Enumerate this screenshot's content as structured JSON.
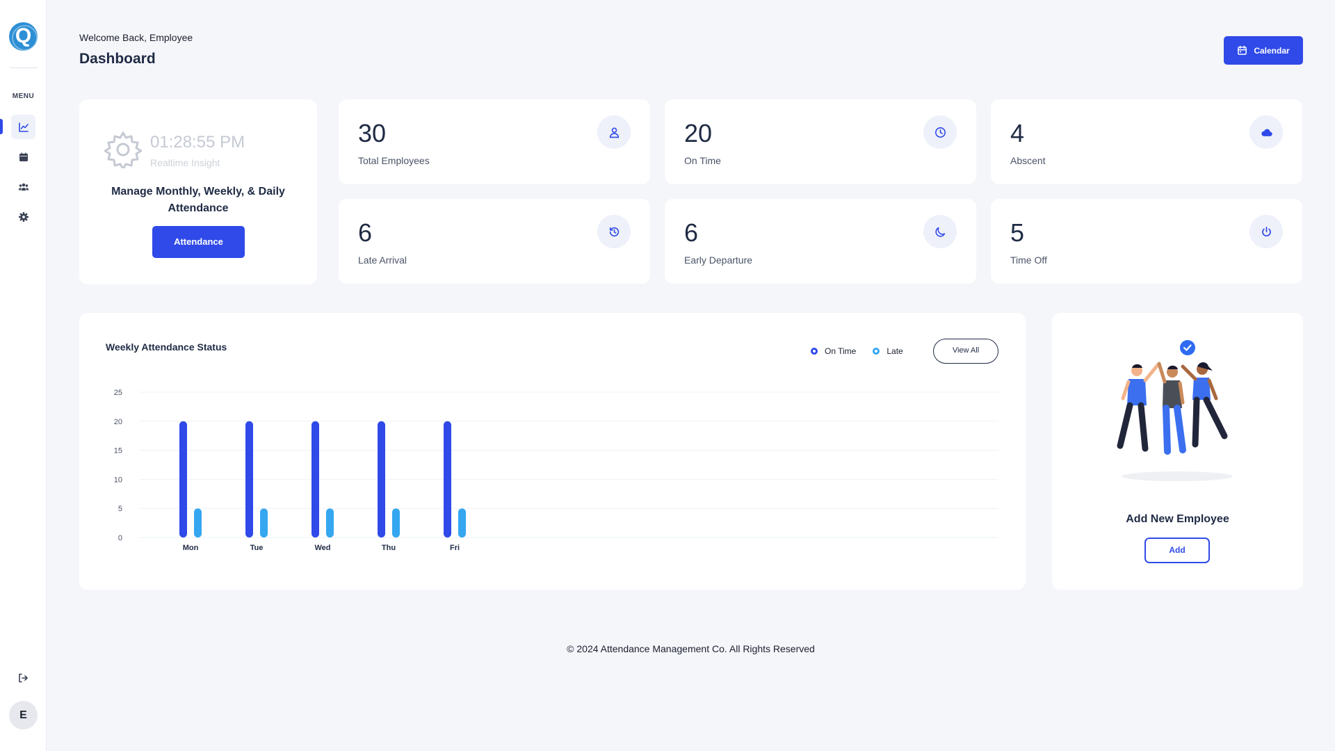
{
  "sidebar": {
    "logo_letter": "Q",
    "menu_label": "MENU",
    "nav": [
      {
        "icon": "chart-line-icon",
        "active": true
      },
      {
        "icon": "calendar-icon",
        "active": false
      },
      {
        "icon": "users-icon",
        "active": false
      },
      {
        "icon": "gear-icon",
        "active": false
      }
    ],
    "logout_icon": "logout-icon",
    "avatar_letter": "E"
  },
  "header": {
    "welcome": "Welcome Back, Employee",
    "title": "Dashboard",
    "calendar_label": "Calendar"
  },
  "insight": {
    "time": "01:28:55 PM",
    "subtitle": "Realtime Insight",
    "headline": "Manage Monthly, Weekly, & Daily Attendance",
    "button_label": "Attendance"
  },
  "stats": [
    {
      "value": "30",
      "label": "Total Employees",
      "icon": "user-icon"
    },
    {
      "value": "20",
      "label": "On Time",
      "icon": "clock-icon"
    },
    {
      "value": "4",
      "label": "Abscent",
      "icon": "cloud-icon"
    },
    {
      "value": "6",
      "label": "Late Arrival",
      "icon": "history-icon"
    },
    {
      "value": "6",
      "label": "Early Departure",
      "icon": "moon-icon"
    },
    {
      "value": "5",
      "label": "Time Off",
      "icon": "power-icon"
    }
  ],
  "chart": {
    "title": "Weekly Attendance Status",
    "view_all_label": "View All"
  },
  "chart_data": {
    "type": "bar",
    "title": "Weekly Attendance Status",
    "categories": [
      "Mon",
      "Tue",
      "Wed",
      "Thu",
      "Fri"
    ],
    "series": [
      {
        "name": "On Time",
        "values": [
          20,
          20,
          20,
          20,
          20
        ],
        "color": "#2f4ae8"
      },
      {
        "name": "Late",
        "values": [
          5,
          5,
          5,
          5,
          5
        ],
        "color": "#35a7f0"
      }
    ],
    "yticks": [
      0,
      5,
      10,
      15,
      20,
      25
    ],
    "ylim": [
      0,
      25
    ],
    "grid": true,
    "legend": "top-right"
  },
  "add_employee": {
    "title": "Add New Employee",
    "button_label": "Add"
  },
  "footer": "© 2024 Attendance Management Co. All Rights Reserved",
  "colors": {
    "accent": "#2f4ae8",
    "late": "#35a7f0",
    "logo": "#2d8fd5"
  }
}
